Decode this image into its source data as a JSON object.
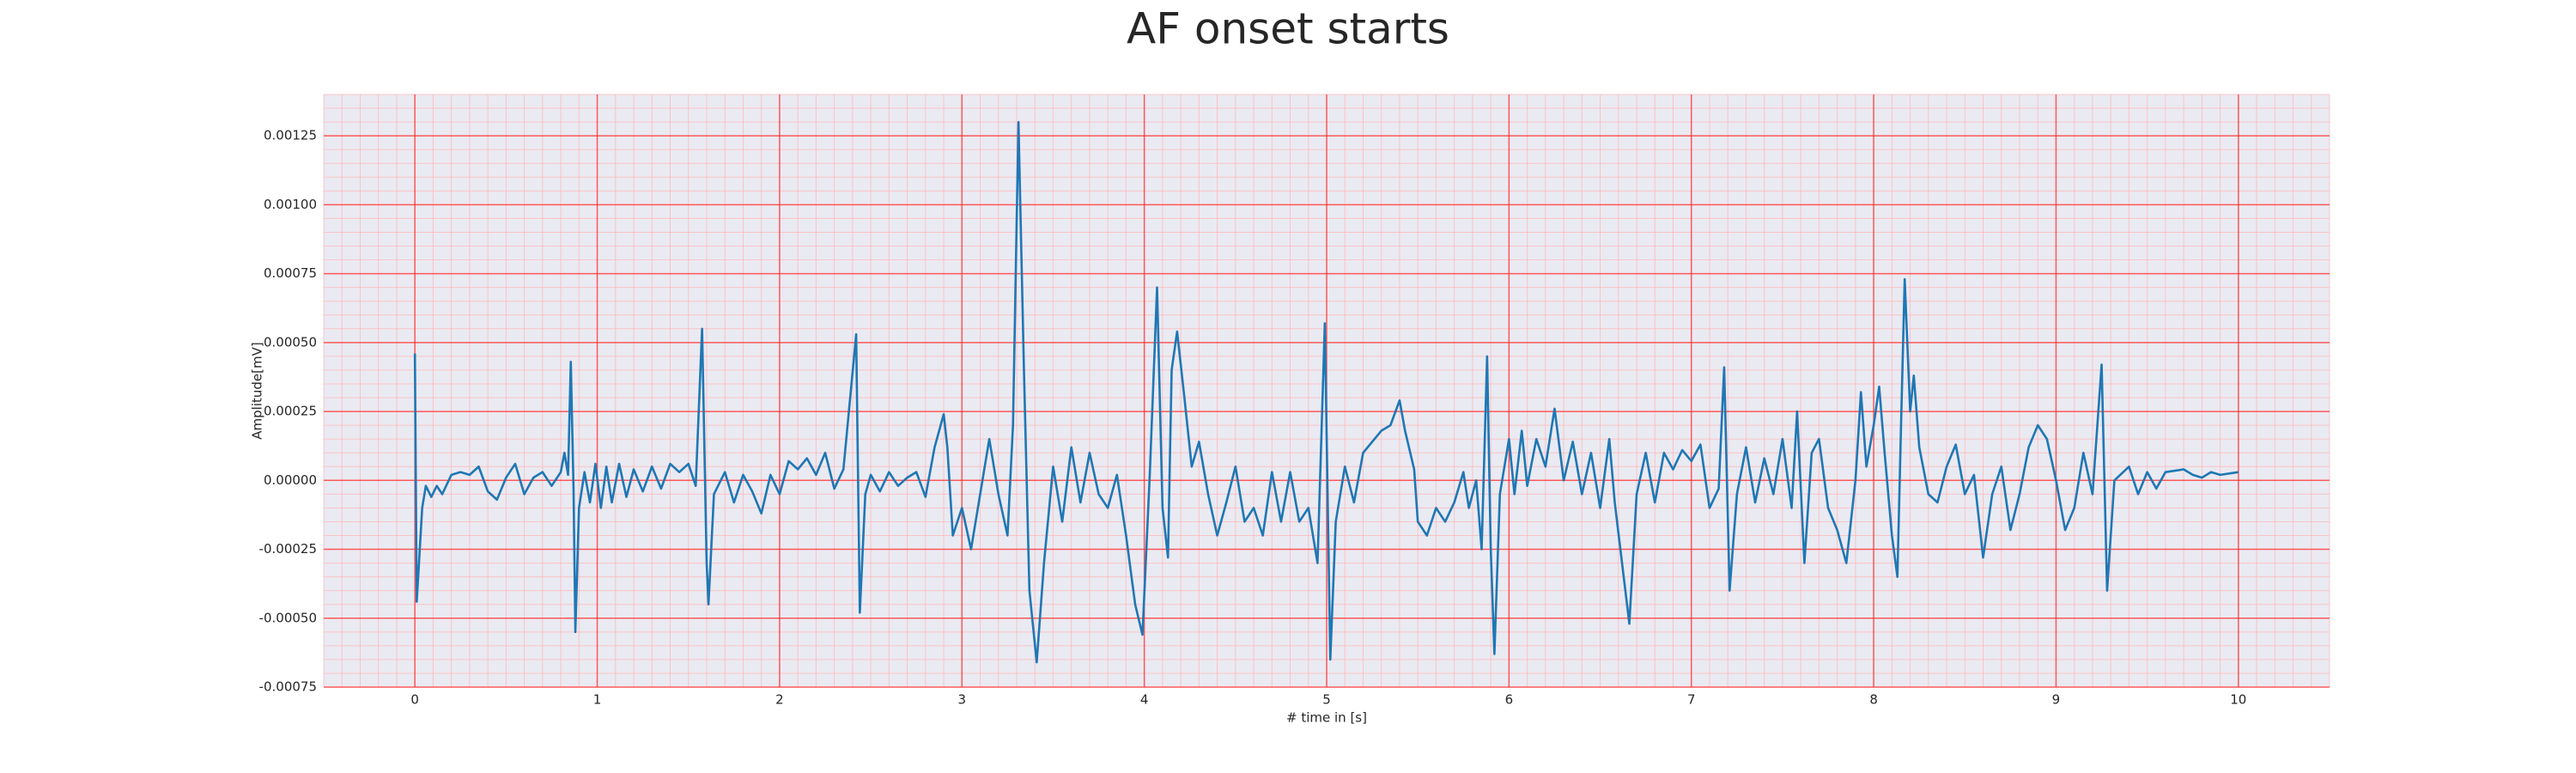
{
  "chart_data": {
    "type": "line",
    "title": "AF onset starts",
    "xlabel": "# time in [s]",
    "ylabel": "Amplitude[mV]",
    "color": "#1f77b4",
    "grid": true,
    "minor_grid": true,
    "xlim": [
      -0.5,
      10.5
    ],
    "xticks": [
      0,
      1,
      2,
      3,
      4,
      5,
      6,
      7,
      8,
      9,
      10
    ],
    "ylim": [
      -0.00075,
      0.0014
    ],
    "yticks": [
      -0.00075,
      {
        "value": -0.0005,
        "label": "-0.00050"
      },
      -0.00025,
      {
        "value": 0,
        "label": "0.00000"
      },
      0.00025,
      {
        "value": 0.0005,
        "label": "0.00050"
      },
      0.00075,
      {
        "value": 0.001,
        "label": "0.00100"
      },
      0.00125
    ],
    "x": [
      0,
      0.01,
      0.04,
      0.06,
      0.09,
      0.12,
      0.15,
      0.2,
      0.25,
      0.3,
      0.35,
      0.4,
      0.45,
      0.5,
      0.55,
      0.6,
      0.65,
      0.7,
      0.75,
      0.8,
      0.82,
      0.84,
      0.855,
      0.87,
      0.88,
      0.9,
      0.93,
      0.96,
      0.99,
      1.02,
      1.05,
      1.08,
      1.12,
      1.16,
      1.2,
      1.25,
      1.3,
      1.35,
      1.4,
      1.45,
      1.5,
      1.54,
      1.575,
      1.6,
      1.61,
      1.64,
      1.7,
      1.75,
      1.8,
      1.85,
      1.9,
      1.95,
      2,
      2.05,
      2.1,
      2.15,
      2.2,
      2.25,
      2.3,
      2.35,
      2.42,
      2.44,
      2.47,
      2.5,
      2.55,
      2.6,
      2.65,
      2.7,
      2.75,
      2.8,
      2.85,
      2.9,
      2.92,
      2.95,
      3,
      3.05,
      3.1,
      3.15,
      3.2,
      3.25,
      3.28,
      3.31,
      3.34,
      3.37,
      3.41,
      3.45,
      3.5,
      3.55,
      3.6,
      3.65,
      3.7,
      3.75,
      3.8,
      3.85,
      3.9,
      3.95,
      3.99,
      4.03,
      4.07,
      4.1,
      4.13,
      4.15,
      4.18,
      4.22,
      4.26,
      4.3,
      4.35,
      4.4,
      4.45,
      4.5,
      4.55,
      4.6,
      4.65,
      4.7,
      4.75,
      4.8,
      4.85,
      4.9,
      4.95,
      4.99,
      5.02,
      5.05,
      5.1,
      5.15,
      5.2,
      5.25,
      5.3,
      5.35,
      5.4,
      5.43,
      5.48,
      5.5,
      5.55,
      5.6,
      5.65,
      5.7,
      5.75,
      5.78,
      5.82,
      5.85,
      5.88,
      5.9,
      5.92,
      5.95,
      6,
      6.03,
      6.07,
      6.1,
      6.15,
      6.2,
      6.25,
      6.3,
      6.35,
      6.4,
      6.45,
      6.5,
      6.55,
      6.58,
      6.62,
      6.66,
      6.7,
      6.75,
      6.8,
      6.85,
      6.9,
      6.95,
      7,
      7.05,
      7.1,
      7.15,
      7.18,
      7.21,
      7.25,
      7.3,
      7.35,
      7.4,
      7.45,
      7.5,
      7.55,
      7.58,
      7.62,
      7.66,
      7.7,
      7.75,
      7.8,
      7.85,
      7.9,
      7.93,
      7.96,
      8,
      8.03,
      8.06,
      8.1,
      8.13,
      8.15,
      8.17,
      8.2,
      8.22,
      8.25,
      8.3,
      8.35,
      8.4,
      8.45,
      8.5,
      8.55,
      8.6,
      8.65,
      8.7,
      8.75,
      8.8,
      8.85,
      8.9,
      8.95,
      9,
      9.05,
      9.1,
      9.15,
      9.2,
      9.25,
      9.28,
      9.32,
      9.4,
      9.45,
      9.5,
      9.55,
      9.6,
      9.7,
      9.75,
      9.8,
      9.85,
      9.9,
      10
    ],
    "values": [
      0.00046,
      -0.00044,
      -0.0001,
      -2e-05,
      -6e-05,
      -2e-05,
      -5e-05,
      2e-05,
      3e-05,
      2e-05,
      5e-05,
      -4e-05,
      -7e-05,
      1e-05,
      6e-05,
      -5e-05,
      1e-05,
      3e-05,
      -2e-05,
      3e-05,
      0.0001,
      2e-05,
      0.00043,
      -3e-05,
      -0.00055,
      -0.0001,
      3e-05,
      -8e-05,
      6e-05,
      -0.0001,
      5e-05,
      -8e-05,
      6e-05,
      -6e-05,
      4e-05,
      -4e-05,
      5e-05,
      -3e-05,
      6e-05,
      3e-05,
      6e-05,
      -2e-05,
      0.00055,
      -0.0003,
      -0.00045,
      -5e-05,
      3e-05,
      -8e-05,
      2e-05,
      -4e-05,
      -0.00012,
      2e-05,
      -5e-05,
      7e-05,
      4e-05,
      8e-05,
      2e-05,
      0.0001,
      -3e-05,
      4e-05,
      0.00053,
      -0.00048,
      -5e-05,
      2e-05,
      -4e-05,
      3e-05,
      -2e-05,
      1e-05,
      3e-05,
      -6e-05,
      0.00012,
      0.00024,
      0.00012,
      -0.0002,
      -0.0001,
      -0.00025,
      -5e-05,
      0.00015,
      -5e-05,
      -0.0002,
      0.0002,
      0.0013,
      0.0004,
      -0.0004,
      -0.00066,
      -0.0003,
      5e-05,
      -0.00015,
      0.00012,
      -8e-05,
      0.0001,
      -5e-05,
      -0.0001,
      2e-05,
      -0.0002,
      -0.00045,
      -0.00056,
      2e-05,
      0.0007,
      -0.0001,
      -0.00028,
      0.0004,
      0.00054,
      0.0003,
      5e-05,
      0.00014,
      -5e-05,
      -0.0002,
      -8e-05,
      5e-05,
      -0.00015,
      -0.0001,
      -0.0002,
      3e-05,
      -0.00015,
      3e-05,
      -0.00015,
      -0.0001,
      -0.0003,
      0.00057,
      -0.00065,
      -0.00015,
      5e-05,
      -8e-05,
      0.0001,
      0.00014,
      0.00018,
      0.0002,
      0.00029,
      0.00018,
      4e-05,
      -0.00015,
      -0.0002,
      -0.0001,
      -0.00015,
      -8e-05,
      3e-05,
      -0.0001,
      0,
      -0.00025,
      0.00045,
      -0.00025,
      -0.00063,
      -5e-05,
      0.00015,
      -5e-05,
      0.00018,
      -2e-05,
      0.00015,
      5e-05,
      0.00026,
      0,
      0.00014,
      -5e-05,
      0.0001,
      -0.0001,
      0.00015,
      -8e-05,
      -0.0003,
      -0.00052,
      -5e-05,
      0.0001,
      -8e-05,
      0.0001,
      4e-05,
      0.00011,
      7e-05,
      0.00013,
      -0.0001,
      -3e-05,
      0.00041,
      -0.0004,
      -5e-05,
      0.00012,
      -8e-05,
      8e-05,
      -5e-05,
      0.00015,
      -0.0001,
      0.00025,
      -0.0003,
      0.0001,
      0.00015,
      -0.0001,
      -0.00018,
      -0.0003,
      0,
      0.00032,
      5e-05,
      0.0002,
      0.00034,
      0.0001,
      -0.0002,
      -0.00035,
      0.0002,
      0.00073,
      0.00025,
      0.00038,
      0.00012,
      -5e-05,
      -8e-05,
      5e-05,
      0.00013,
      -5e-05,
      2e-05,
      -0.00028,
      -5e-05,
      5e-05,
      -0.00018,
      -5e-05,
      0.00012,
      0.0002,
      0.00015,
      0,
      -0.00018,
      -0.0001,
      0.0001,
      -5e-05,
      0.00042,
      -0.0004,
      0,
      5e-05,
      -5e-05,
      3e-05,
      -3e-05,
      3e-05,
      4e-05,
      2e-05,
      1e-05,
      3e-05,
      2e-05,
      3e-05
    ]
  }
}
